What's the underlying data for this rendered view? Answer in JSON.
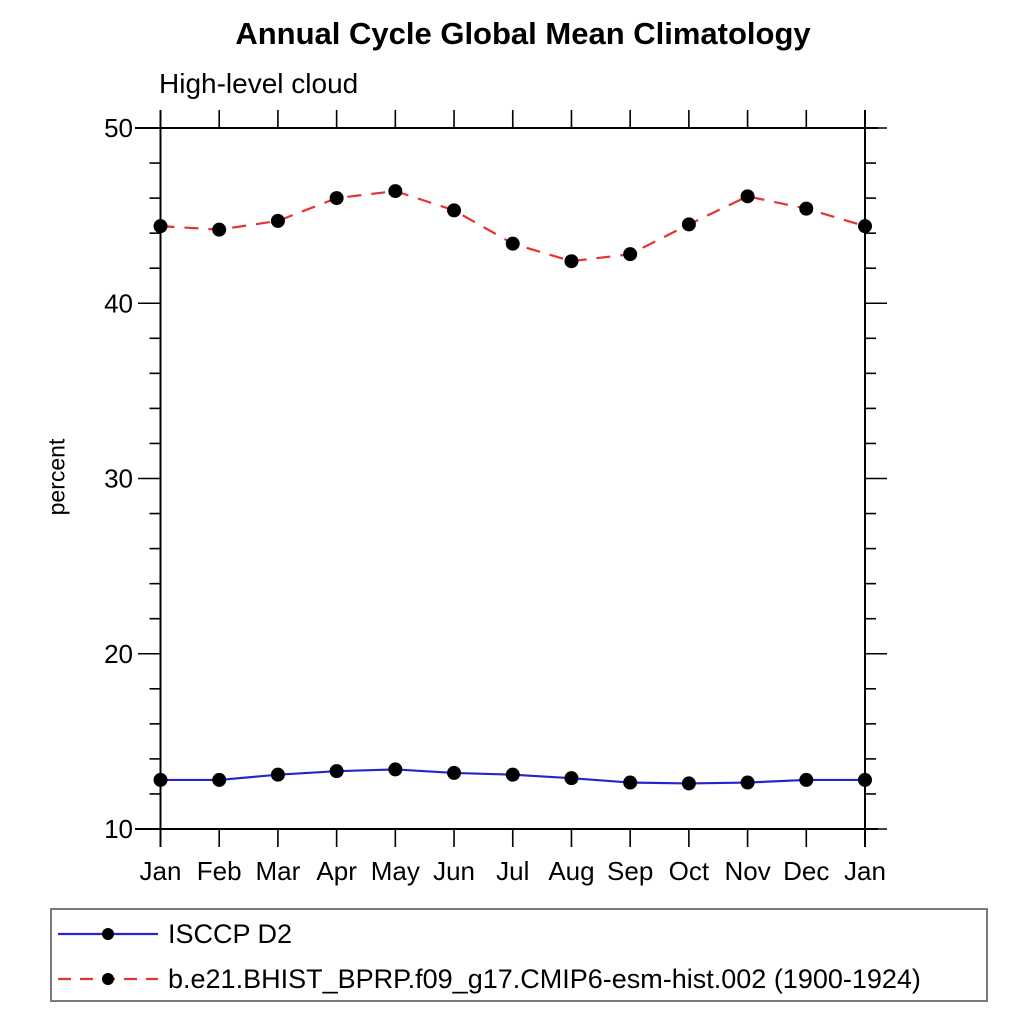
{
  "title": "Annual Cycle Global Mean Climatology",
  "subtitle": "High-level cloud",
  "chart_data": {
    "type": "line",
    "title": "Annual Cycle Global Mean Climatology",
    "subtitle": "High-level cloud",
    "xlabel": "",
    "ylabel": "percent",
    "ylim": [
      10,
      50
    ],
    "ytick_major": [
      10,
      20,
      30,
      40,
      50
    ],
    "ytick_minor_step": 2,
    "grid": false,
    "legend_position": "bottom-left-box",
    "categories": [
      "Jan",
      "Feb",
      "Mar",
      "Apr",
      "May",
      "Jun",
      "Jul",
      "Aug",
      "Sep",
      "Oct",
      "Nov",
      "Dec",
      "Jan"
    ],
    "series": [
      {
        "name": "ISCCP D2",
        "color": "#2525cd",
        "line_style": "solid",
        "marker": "filled-circle",
        "marker_color": "#000000",
        "values": [
          12.8,
          12.8,
          13.1,
          13.3,
          13.4,
          13.2,
          13.1,
          12.9,
          12.65,
          12.6,
          12.65,
          12.8,
          12.8
        ]
      },
      {
        "name": "b.e21.BHIST_BPRP.f09_g17.CMIP6-esm-hist.002 (1900-1924)",
        "color": "#e63232",
        "line_style": "dashed",
        "marker": "filled-circle",
        "marker_color": "#000000",
        "values": [
          44.4,
          44.2,
          44.7,
          46.0,
          46.4,
          45.3,
          43.4,
          42.4,
          42.8,
          44.5,
          46.1,
          45.4,
          44.4
        ]
      }
    ]
  }
}
